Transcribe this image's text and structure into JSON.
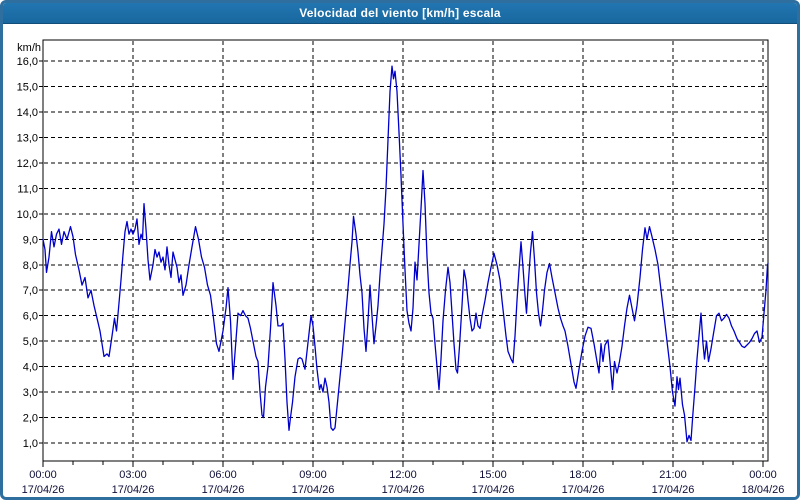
{
  "window": {
    "title": "Velocidad del viento [km/h] escala"
  },
  "frame": {
    "border_color": "#2E6F9F",
    "titlebar_color": "#1C6DA9"
  },
  "chart_data": {
    "type": "line",
    "title": "Velocidad del viento [km/h] escala",
    "ylabel": "km/h",
    "series_name": "Velocidad del viento",
    "line_color": "#0000CC",
    "grid": "dashed",
    "legend_position": "none",
    "ylim": [
      0.3,
      16.8
    ],
    "y_ticks": [
      {
        "value": 1,
        "label": "1,0"
      },
      {
        "value": 2,
        "label": "2,0"
      },
      {
        "value": 3,
        "label": "3,0"
      },
      {
        "value": 4,
        "label": "4,0"
      },
      {
        "value": 5,
        "label": "5,0"
      },
      {
        "value": 6,
        "label": "6,0"
      },
      {
        "value": 7,
        "label": "7,0"
      },
      {
        "value": 8,
        "label": "8,0"
      },
      {
        "value": 9,
        "label": "9,0"
      },
      {
        "value": 10,
        "label": "10,0"
      },
      {
        "value": 11,
        "label": "11,0"
      },
      {
        "value": 12,
        "label": "12,0"
      },
      {
        "value": 13,
        "label": "13,0"
      },
      {
        "value": 14,
        "label": "14,0"
      },
      {
        "value": 15,
        "label": "15,0"
      },
      {
        "value": 16,
        "label": "16,0"
      }
    ],
    "x_ticks": [
      {
        "min": 0,
        "time": "00:00",
        "date": "17/04/26"
      },
      {
        "min": 180,
        "time": "03:00",
        "date": "17/04/26"
      },
      {
        "min": 360,
        "time": "06:00",
        "date": "17/04/26"
      },
      {
        "min": 540,
        "time": "09:00",
        "date": "17/04/26"
      },
      {
        "min": 720,
        "time": "12:00",
        "date": "17/04/26"
      },
      {
        "min": 900,
        "time": "15:00",
        "date": "17/04/26"
      },
      {
        "min": 1080,
        "time": "18:00",
        "date": "17/04/26"
      },
      {
        "min": 1260,
        "time": "21:00",
        "date": "17/04/26"
      },
      {
        "min": 1440,
        "time": "00:00",
        "date": "18/04/26"
      }
    ],
    "x_minor_tick_minutes": 60,
    "x_total_minutes": 1450,
    "points_min_kmh": [
      [
        0,
        9.0
      ],
      [
        4,
        8.6
      ],
      [
        7,
        7.7
      ],
      [
        12,
        8.3
      ],
      [
        17,
        9.3
      ],
      [
        22,
        8.7
      ],
      [
        27,
        9.2
      ],
      [
        32,
        9.4
      ],
      [
        37,
        8.8
      ],
      [
        42,
        9.3
      ],
      [
        48,
        9.0
      ],
      [
        55,
        9.5
      ],
      [
        60,
        9.1
      ],
      [
        65,
        8.4
      ],
      [
        72,
        7.8
      ],
      [
        78,
        7.2
      ],
      [
        84,
        7.5
      ],
      [
        90,
        6.7
      ],
      [
        96,
        7.0
      ],
      [
        102,
        6.4
      ],
      [
        108,
        5.9
      ],
      [
        114,
        5.4
      ],
      [
        118,
        4.9
      ],
      [
        122,
        4.4
      ],
      [
        128,
        4.5
      ],
      [
        132,
        4.4
      ],
      [
        138,
        5.2
      ],
      [
        143,
        5.9
      ],
      [
        147,
        5.4
      ],
      [
        152,
        6.5
      ],
      [
        156,
        7.4
      ],
      [
        160,
        8.4
      ],
      [
        164,
        9.3
      ],
      [
        168,
        9.7
      ],
      [
        172,
        9.2
      ],
      [
        176,
        9.4
      ],
      [
        180,
        9.2
      ],
      [
        184,
        9.4
      ],
      [
        188,
        9.8
      ],
      [
        192,
        8.8
      ],
      [
        196,
        9.2
      ],
      [
        199,
        9.0
      ],
      [
        202,
        10.4
      ],
      [
        206,
        9.4
      ],
      [
        210,
        8.2
      ],
      [
        214,
        7.4
      ],
      [
        220,
        8.0
      ],
      [
        224,
        8.6
      ],
      [
        228,
        8.3
      ],
      [
        232,
        8.5
      ],
      [
        236,
        8.1
      ],
      [
        240,
        8.3
      ],
      [
        244,
        7.8
      ],
      [
        248,
        8.7
      ],
      [
        252,
        8.0
      ],
      [
        256,
        7.5
      ],
      [
        260,
        8.5
      ],
      [
        264,
        8.2
      ],
      [
        268,
        7.9
      ],
      [
        272,
        7.3
      ],
      [
        276,
        7.6
      ],
      [
        280,
        6.8
      ],
      [
        286,
        7.2
      ],
      [
        292,
        8.0
      ],
      [
        298,
        8.7
      ],
      [
        305,
        9.5
      ],
      [
        311,
        9.0
      ],
      [
        317,
        8.3
      ],
      [
        323,
        7.9
      ],
      [
        329,
        7.2
      ],
      [
        335,
        6.8
      ],
      [
        341,
        5.9
      ],
      [
        347,
        4.9
      ],
      [
        352,
        4.6
      ],
      [
        356,
        5.0
      ],
      [
        360,
        5.4
      ],
      [
        366,
        6.3
      ],
      [
        370,
        7.1
      ],
      [
        375,
        5.8
      ],
      [
        380,
        3.5
      ],
      [
        385,
        4.8
      ],
      [
        390,
        6.1
      ],
      [
        395,
        6.0
      ],
      [
        400,
        6.2
      ],
      [
        405,
        6.0
      ],
      [
        410,
        5.9
      ],
      [
        415,
        5.5
      ],
      [
        420,
        5.0
      ],
      [
        426,
        4.4
      ],
      [
        430,
        4.2
      ],
      [
        434,
        3.0
      ],
      [
        438,
        2.1
      ],
      [
        441,
        2.0
      ],
      [
        445,
        3.2
      ],
      [
        450,
        4.0
      ],
      [
        455,
        5.5
      ],
      [
        460,
        7.3
      ],
      [
        466,
        6.4
      ],
      [
        470,
        5.6
      ],
      [
        476,
        5.6
      ],
      [
        480,
        5.7
      ],
      [
        484,
        4.3
      ],
      [
        488,
        2.6
      ],
      [
        492,
        1.5
      ],
      [
        495,
        2.0
      ],
      [
        499,
        2.6
      ],
      [
        504,
        3.6
      ],
      [
        510,
        4.3
      ],
      [
        514,
        4.35
      ],
      [
        518,
        4.3
      ],
      [
        524,
        3.9
      ],
      [
        528,
        4.6
      ],
      [
        532,
        5.3
      ],
      [
        536,
        6.0
      ],
      [
        540,
        5.6
      ],
      [
        544,
        4.8
      ],
      [
        548,
        3.9
      ],
      [
        553,
        3.1
      ],
      [
        556,
        3.3
      ],
      [
        560,
        3.0
      ],
      [
        564,
        3.55
      ],
      [
        568,
        3.2
      ],
      [
        572,
        2.6
      ],
      [
        576,
        1.6
      ],
      [
        580,
        1.5
      ],
      [
        584,
        1.6
      ],
      [
        588,
        2.4
      ],
      [
        593,
        3.4
      ],
      [
        598,
        4.4
      ],
      [
        603,
        5.5
      ],
      [
        608,
        6.6
      ],
      [
        613,
        7.8
      ],
      [
        618,
        8.9
      ],
      [
        621,
        9.9
      ],
      [
        626,
        9.2
      ],
      [
        630,
        8.5
      ],
      [
        634,
        7.6
      ],
      [
        638,
        6.9
      ],
      [
        642,
        5.5
      ],
      [
        646,
        4.6
      ],
      [
        650,
        5.8
      ],
      [
        654,
        7.2
      ],
      [
        658,
        6.0
      ],
      [
        662,
        4.9
      ],
      [
        666,
        5.6
      ],
      [
        670,
        6.4
      ],
      [
        674,
        7.6
      ],
      [
        678,
        8.6
      ],
      [
        682,
        9.6
      ],
      [
        686,
        11.0
      ],
      [
        690,
        12.9
      ],
      [
        694,
        14.8
      ],
      [
        698,
        15.8
      ],
      [
        701,
        15.3
      ],
      [
        704,
        15.6
      ],
      [
        708,
        14.8
      ],
      [
        712,
        13.2
      ],
      [
        716,
        11.5
      ],
      [
        720,
        9.6
      ],
      [
        724,
        7.8
      ],
      [
        728,
        6.2
      ],
      [
        732,
        5.7
      ],
      [
        736,
        5.4
      ],
      [
        740,
        6.3
      ],
      [
        744,
        8.1
      ],
      [
        748,
        7.4
      ],
      [
        752,
        8.8
      ],
      [
        756,
        10.2
      ],
      [
        760,
        11.7
      ],
      [
        764,
        10.4
      ],
      [
        768,
        8.3
      ],
      [
        772,
        6.9
      ],
      [
        776,
        6.1
      ],
      [
        780,
        5.9
      ],
      [
        784,
        4.9
      ],
      [
        788,
        4.0
      ],
      [
        792,
        3.1
      ],
      [
        796,
        4.3
      ],
      [
        800,
        5.8
      ],
      [
        805,
        7.0
      ],
      [
        810,
        7.9
      ],
      [
        814,
        7.3
      ],
      [
        818,
        6.1
      ],
      [
        822,
        4.9
      ],
      [
        826,
        3.9
      ],
      [
        829,
        3.75
      ],
      [
        833,
        4.8
      ],
      [
        838,
        6.4
      ],
      [
        842,
        7.8
      ],
      [
        846,
        7.4
      ],
      [
        850,
        6.6
      ],
      [
        854,
        5.9
      ],
      [
        858,
        5.4
      ],
      [
        862,
        5.5
      ],
      [
        866,
        6.1
      ],
      [
        870,
        5.6
      ],
      [
        874,
        5.5
      ],
      [
        878,
        6.0
      ],
      [
        884,
        6.6
      ],
      [
        890,
        7.3
      ],
      [
        896,
        7.9
      ],
      [
        902,
        8.45
      ],
      [
        908,
        8.0
      ],
      [
        914,
        7.4
      ],
      [
        918,
        6.6
      ],
      [
        922,
        5.9
      ],
      [
        926,
        5.2
      ],
      [
        930,
        4.6
      ],
      [
        936,
        4.3
      ],
      [
        940,
        4.15
      ],
      [
        944,
        5.2
      ],
      [
        948,
        6.6
      ],
      [
        952,
        7.8
      ],
      [
        956,
        8.9
      ],
      [
        960,
        7.9
      ],
      [
        964,
        6.8
      ],
      [
        967,
        6.1
      ],
      [
        971,
        7.4
      ],
      [
        975,
        8.5
      ],
      [
        979,
        9.3
      ],
      [
        983,
        8.2
      ],
      [
        987,
        6.9
      ],
      [
        991,
        6.1
      ],
      [
        995,
        5.6
      ],
      [
        999,
        6.2
      ],
      [
        1003,
        7.0
      ],
      [
        1008,
        7.7
      ],
      [
        1013,
        8.05
      ],
      [
        1018,
        7.5
      ],
      [
        1024,
        6.9
      ],
      [
        1030,
        6.3
      ],
      [
        1035,
        5.9
      ],
      [
        1040,
        5.6
      ],
      [
        1044,
        5.4
      ],
      [
        1050,
        4.8
      ],
      [
        1056,
        4.1
      ],
      [
        1062,
        3.4
      ],
      [
        1066,
        3.15
      ],
      [
        1072,
        3.9
      ],
      [
        1078,
        4.6
      ],
      [
        1084,
        5.2
      ],
      [
        1090,
        5.55
      ],
      [
        1096,
        5.5
      ],
      [
        1102,
        4.9
      ],
      [
        1108,
        4.2
      ],
      [
        1112,
        3.75
      ],
      [
        1116,
        4.9
      ],
      [
        1120,
        4.2
      ],
      [
        1124,
        4.85
      ],
      [
        1130,
        5.05
      ],
      [
        1134,
        4.2
      ],
      [
        1139,
        3.1
      ],
      [
        1143,
        4.2
      ],
      [
        1148,
        3.75
      ],
      [
        1153,
        4.2
      ],
      [
        1158,
        4.8
      ],
      [
        1163,
        5.6
      ],
      [
        1168,
        6.3
      ],
      [
        1173,
        6.8
      ],
      [
        1178,
        6.3
      ],
      [
        1183,
        5.8
      ],
      [
        1188,
        6.4
      ],
      [
        1194,
        7.5
      ],
      [
        1199,
        8.6
      ],
      [
        1204,
        9.45
      ],
      [
        1208,
        9.0
      ],
      [
        1213,
        9.5
      ],
      [
        1218,
        9.1
      ],
      [
        1224,
        8.6
      ],
      [
        1230,
        8.0
      ],
      [
        1236,
        7.0
      ],
      [
        1242,
        6.0
      ],
      [
        1248,
        5.0
      ],
      [
        1254,
        4.0
      ],
      [
        1259,
        3.0
      ],
      [
        1264,
        2.45
      ],
      [
        1268,
        3.6
      ],
      [
        1271,
        3.1
      ],
      [
        1274,
        3.55
      ],
      [
        1279,
        2.5
      ],
      [
        1283,
        2.1
      ],
      [
        1288,
        1.05
      ],
      [
        1292,
        1.3
      ],
      [
        1296,
        1.1
      ],
      [
        1300,
        2.2
      ],
      [
        1304,
        3.2
      ],
      [
        1308,
        4.3
      ],
      [
        1312,
        5.2
      ],
      [
        1316,
        6.1
      ],
      [
        1320,
        4.9
      ],
      [
        1323,
        4.3
      ],
      [
        1327,
        5.0
      ],
      [
        1331,
        4.2
      ],
      [
        1336,
        4.7
      ],
      [
        1341,
        5.3
      ],
      [
        1347,
        6.0
      ],
      [
        1352,
        6.1
      ],
      [
        1357,
        5.8
      ],
      [
        1362,
        5.9
      ],
      [
        1367,
        6.05
      ],
      [
        1372,
        5.9
      ],
      [
        1377,
        5.6
      ],
      [
        1382,
        5.4
      ],
      [
        1388,
        5.1
      ],
      [
        1393,
        4.95
      ],
      [
        1398,
        4.8
      ],
      [
        1403,
        4.75
      ],
      [
        1408,
        4.85
      ],
      [
        1413,
        4.95
      ],
      [
        1418,
        5.1
      ],
      [
        1423,
        5.3
      ],
      [
        1428,
        5.4
      ],
      [
        1433,
        4.95
      ],
      [
        1438,
        5.15
      ],
      [
        1442,
        6.1
      ],
      [
        1446,
        7.0
      ],
      [
        1449,
        8.0
      ],
      [
        1450,
        8.05
      ]
    ]
  }
}
